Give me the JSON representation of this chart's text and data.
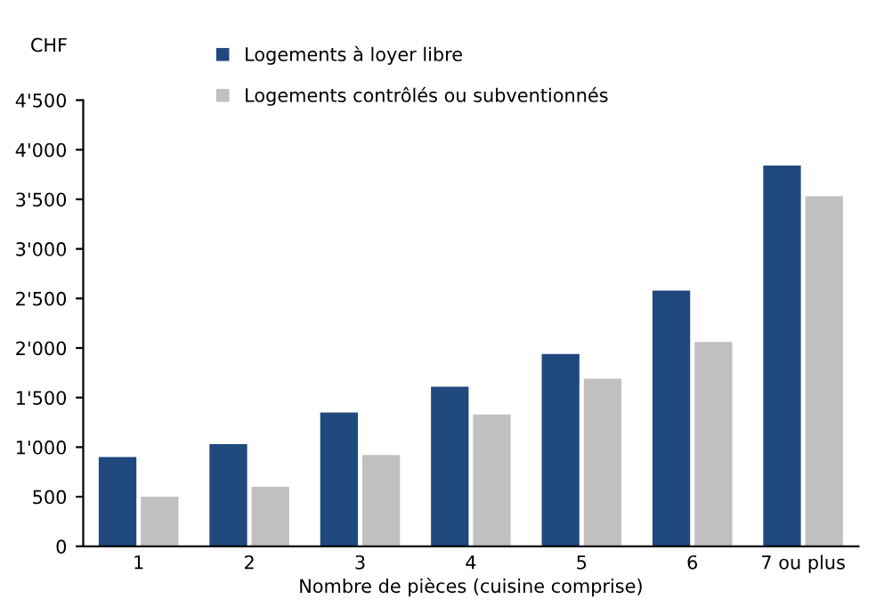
{
  "chart_data": {
    "type": "bar",
    "ylabel": "CHF",
    "xlabel": "Nombre de pièces (cuisine comprise)",
    "categories": [
      "1",
      "2",
      "3",
      "4",
      "5",
      "6",
      "7 ou plus"
    ],
    "series": [
      {
        "name": "Logements à loyer libre",
        "color": "#1f497d",
        "values": [
          900,
          1030,
          1350,
          1610,
          1940,
          2580,
          3840
        ]
      },
      {
        "name": "Logements contrôlés ou subventionnés",
        "color": "#c0c0c0",
        "values": [
          500,
          600,
          920,
          1330,
          1690,
          2060,
          3530
        ]
      }
    ],
    "ylim": [
      0,
      4500
    ],
    "yticks": [
      0,
      500,
      {
        "value": 1000,
        "label": "1'000"
      },
      {
        "value": 1500,
        "label": "1'500"
      },
      {
        "value": 2000,
        "label": "2'000"
      },
      {
        "value": 2500,
        "label": "2'500"
      },
      {
        "value": 3000,
        "label": "3'000"
      },
      {
        "value": 3500,
        "label": "3'500"
      },
      {
        "value": 4000,
        "label": "4'000"
      },
      {
        "value": 4500,
        "label": "4'500"
      }
    ],
    "grid": false,
    "legend": "top"
  }
}
